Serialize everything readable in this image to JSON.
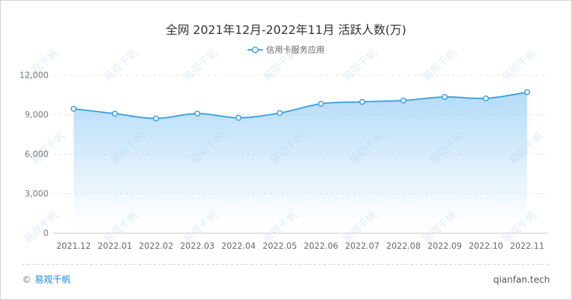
{
  "chart_data": {
    "type": "area",
    "title": "全网 2021年12月-2022年11月 活跃人数(万)",
    "categories": [
      "2021.12",
      "2022.01",
      "2022.02",
      "2022.03",
      "2022.04",
      "2022.05",
      "2022.06",
      "2022.07",
      "2022.08",
      "2022.09",
      "2022.10",
      "2022.11"
    ],
    "series": [
      {
        "name": "信用卡服务应用",
        "values": [
          9420,
          9050,
          8690,
          9060,
          8740,
          9100,
          9800,
          9950,
          10050,
          10320,
          10210,
          10680
        ]
      }
    ],
    "ylim": [
      0,
      12000
    ],
    "yticks": [
      0,
      3000,
      6000,
      9000,
      12000
    ],
    "ytick_labels": [
      "0",
      "3,000",
      "6,000",
      "9,000",
      "12,000"
    ],
    "grid": true,
    "smooth": true,
    "legend_position": "top-center"
  },
  "colors": {
    "line": "#3aa0e4",
    "area": "#8fcaf5",
    "grid": "#e3e3e3",
    "axis": "#cccccc",
    "tick_text": "#777777",
    "watermark": "#c9dced"
  },
  "footer": {
    "copyright": "©",
    "brand": "易观千帆",
    "site": "qianfan.tech"
  },
  "watermark": "易观千帆"
}
